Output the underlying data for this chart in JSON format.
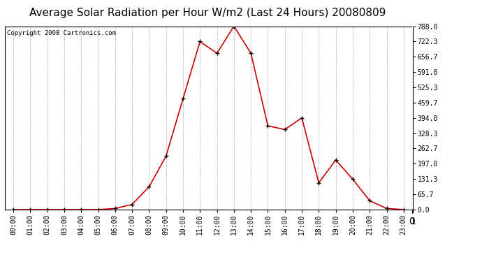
{
  "title": "Average Solar Radiation per Hour W/m2 (Last 24 Hours) 20080809",
  "copyright": "Copyright 2008 Cartronics.com",
  "hours": [
    0,
    1,
    2,
    3,
    4,
    5,
    6,
    7,
    8,
    9,
    10,
    11,
    12,
    13,
    14,
    15,
    16,
    17,
    18,
    19,
    20,
    21,
    22,
    23
  ],
  "values": [
    0.0,
    0.0,
    0.0,
    0.0,
    0.0,
    0.0,
    5.0,
    22.0,
    98.0,
    230.0,
    476.0,
    722.0,
    672.0,
    788.0,
    672.0,
    360.0,
    344.0,
    394.0,
    115.0,
    213.0,
    131.0,
    38.0,
    5.0,
    0.0
  ],
  "line_color": "#cc0000",
  "marker_color": "#000000",
  "bg_color": "#ffffff",
  "grid_color": "#bbbbbb",
  "ylim": [
    0.0,
    788.0
  ],
  "yticks": [
    0.0,
    65.7,
    131.3,
    197.0,
    262.7,
    328.3,
    394.0,
    459.7,
    525.3,
    591.0,
    656.7,
    722.3,
    788.0
  ],
  "title_fontsize": 11,
  "copyright_fontsize": 6.5,
  "tick_fontsize": 7,
  "ytick_fontsize": 7
}
